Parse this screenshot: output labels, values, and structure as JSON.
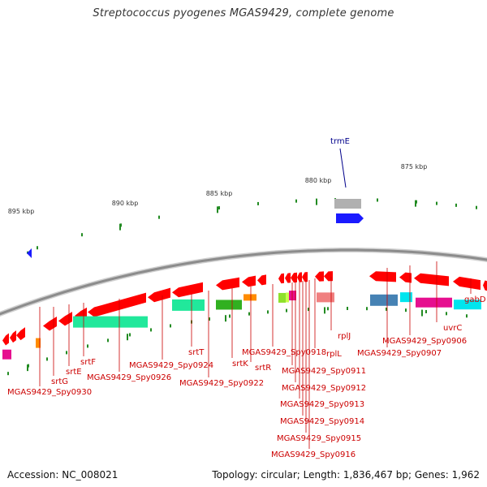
{
  "title": "Streptococcus pyogenes MGAS9429, complete genome",
  "footer": {
    "accession": "Accession: NC_008021",
    "topology": "Topology: circular; Length: 1,836,467 bp; Genes: 1,962"
  },
  "colors": {
    "backbone": "#8c8c8c",
    "gene_label": "#cc0000",
    "highlight_label": "#00008b",
    "forward_gene": "#1a1aff",
    "reverse_gene": "#ff0000",
    "tick": "#228b22"
  },
  "scale": {
    "unit": "kbp",
    "labels": [
      "895 kbp",
      "890 kbp",
      "885 kbp",
      "880 kbp",
      "875 kbp"
    ]
  },
  "highlight_gene": "trmE",
  "gene_labels": [
    "MGAS9429_Spy0930",
    "srtG",
    "srtE",
    "srtF",
    "MGAS9429_Spy0926",
    "srtT",
    "MGAS9429_Spy0924",
    "MGAS9429_Spy0922",
    "srtK",
    "srtR",
    "MGAS9429_Spy0918",
    "MGAS9429_Spy0911",
    "MGAS9429_Spy0912",
    "MGAS9429_Spy0913",
    "MGAS9429_Spy0914",
    "MGAS9429_Spy0915",
    "MGAS9429_Spy0916",
    "rplL",
    "rplJ",
    "MGAS9429_Spy0907",
    "MGAS9429_Spy0906",
    "uvrC",
    "gabD"
  ]
}
